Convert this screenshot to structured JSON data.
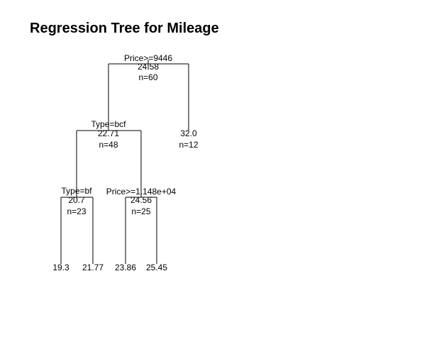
{
  "title": "Regression Tree for Mileage",
  "tree": {
    "nodes": [
      {
        "id": "root",
        "split": "Price>=9446",
        "mean": "24.58",
        "count": "n=60"
      },
      {
        "id": "n_l",
        "split": "Type=bcf",
        "mean": "22.71",
        "count": "n=48"
      },
      {
        "id": "n_r",
        "split": "",
        "mean": "32.0",
        "count": "n=12"
      },
      {
        "id": "n_ll",
        "split": "Type=bf",
        "mean": "20.7",
        "count": "n=23"
      },
      {
        "id": "n_lr",
        "split": "Price>=1.148e+04",
        "mean": "24.56",
        "count": "n=25"
      }
    ],
    "leaves": [
      {
        "id": "leaf_1",
        "mean": "19.3"
      },
      {
        "id": "leaf_2",
        "mean": "21.77"
      },
      {
        "id": "leaf_3",
        "mean": "23.86"
      },
      {
        "id": "leaf_4",
        "mean": "25.45"
      }
    ]
  }
}
